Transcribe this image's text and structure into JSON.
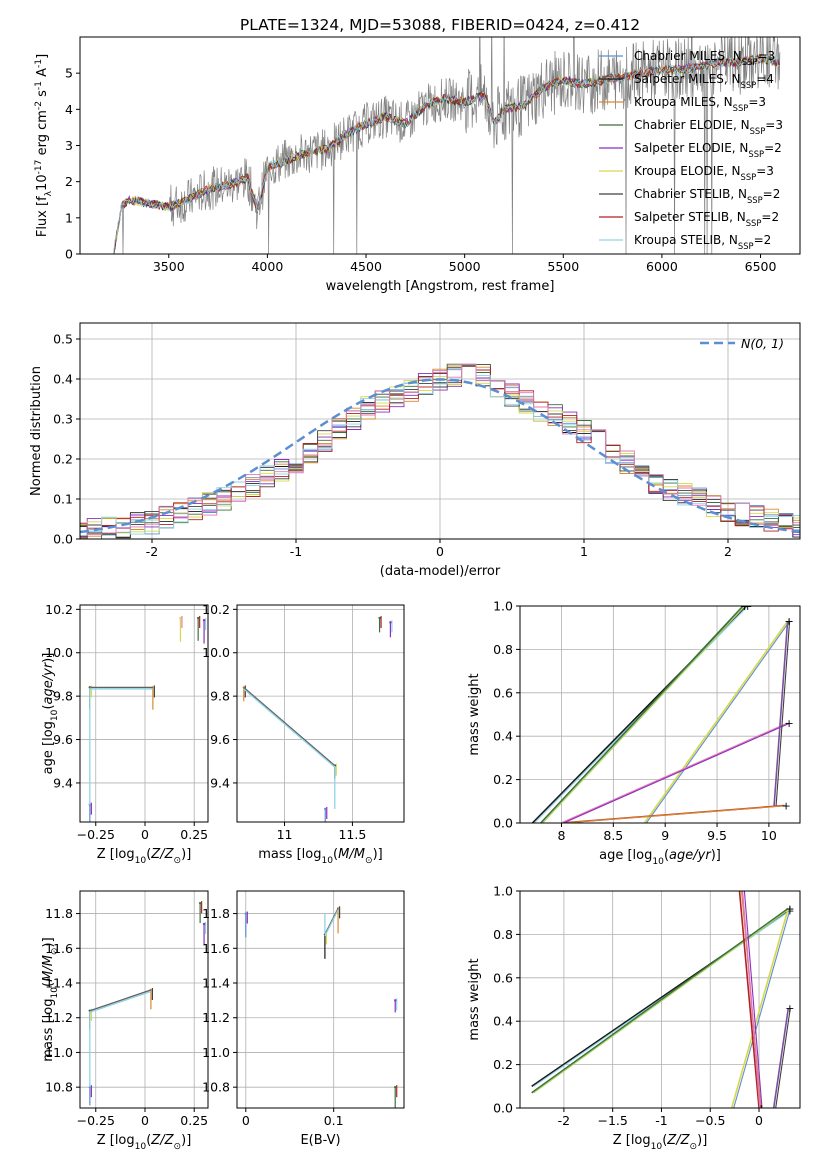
{
  "title": "PLATE=1324, MJD=53088, FIBERID=0424, z=0.412",
  "colors": [
    "#5b8fd1",
    "#1a1a1a",
    "#d98a2b",
    "#3f6f3f",
    "#8a2fbf",
    "#d8d84a",
    "#404040",
    "#b22222",
    "#8fd3e6",
    "#e07ab0",
    "#a8d65a",
    "#7a4fa0"
  ],
  "chart_data": [
    {
      "type": "line",
      "title": "PLATE=1324, MJD=53088, FIBERID=0424, z=0.412",
      "xlabel": "wavelength [Angstrom, rest frame]",
      "ylabel": "Flux [f$_\\lambda$10$^{-17}$ erg cm$^{-2}$ s$^{-1}$ A$^{-1}$]",
      "xlim": [
        3050,
        6700
      ],
      "ylim": [
        0,
        6
      ],
      "xticks": [
        3500,
        4000,
        4500,
        5000,
        5500,
        6000,
        6500
      ],
      "yticks": [
        0,
        1,
        2,
        3,
        4,
        5
      ],
      "legend": "top-right",
      "grid": false,
      "data_trace": {
        "x": [
          3220,
          3260,
          3300,
          3400,
          3500,
          3600,
          3700,
          3800,
          3900,
          3950,
          4000,
          4100,
          4200,
          4300,
          4400,
          4500,
          4600,
          4700,
          4800,
          4900,
          5000,
          5100,
          5150,
          5200,
          5300,
          5400,
          5500,
          5600,
          5700,
          5800,
          5900,
          6000,
          6100,
          6200,
          6300,
          6400,
          6500,
          6600
        ],
        "y": [
          0.0,
          1.3,
          1.5,
          1.4,
          1.3,
          1.5,
          1.8,
          1.9,
          2.1,
          1.2,
          2.4,
          2.6,
          2.8,
          2.9,
          3.3,
          3.6,
          3.8,
          3.6,
          4.1,
          4.3,
          4.2,
          4.4,
          3.6,
          4.0,
          4.1,
          4.6,
          4.8,
          4.7,
          4.8,
          4.9,
          5.0,
          5.1,
          5.1,
          5.2,
          5.3,
          5.3,
          5.4,
          5.3
        ]
      },
      "series": [
        {
          "name": "Chabrier MILES, N$_{SSP}$=3"
        },
        {
          "name": "Salpeter MILES, N$_{SSP}$=4"
        },
        {
          "name": "Kroupa MILES, N$_{SSP}$=3"
        },
        {
          "name": "Chabrier ELODIE, N$_{SSP}$=3"
        },
        {
          "name": "Salpeter ELODIE, N$_{SSP}$=2"
        },
        {
          "name": "Kroupa ELODIE, N$_{SSP}$=3"
        },
        {
          "name": "Chabrier STELIB, N$_{SSP}$=2"
        },
        {
          "name": "Salpeter STELIB, N$_{SSP}$=2"
        },
        {
          "name": "Kroupa STELIB, N$_{SSP}$=2"
        }
      ]
    },
    {
      "type": "line",
      "xlabel": "(data-model)/error",
      "ylabel": "Normed distribution",
      "xlim": [
        -2.5,
        2.5
      ],
      "ylim": [
        0,
        0.54
      ],
      "xticks": [
        -2,
        -1,
        0,
        1,
        2
      ],
      "yticks": [
        0.0,
        0.1,
        0.2,
        0.3,
        0.4,
        0.5
      ],
      "grid": true,
      "legend": "top-right",
      "reference_curve": {
        "name": "$\\mathcal{N}(0, 1)$",
        "style": "dashed",
        "mean": 0,
        "sd": 1
      },
      "histogram_bin_width": 0.1,
      "histogram_envelope": {
        "x": [
          -2.5,
          -2.0,
          -1.5,
          -1.0,
          -0.5,
          0.0,
          0.25,
          0.5,
          1.0,
          1.5,
          2.0,
          2.5
        ],
        "y": [
          0.02,
          0.04,
          0.1,
          0.19,
          0.33,
          0.4,
          0.42,
          0.36,
          0.27,
          0.14,
          0.07,
          0.03
        ]
      }
    },
    {
      "type": "scatter",
      "xlabel": "Z [log$_{10}$($Z/Z_\\odot$)]",
      "ylabel": "age  [log$_{10}$($age/yr$)]",
      "xlim": [
        -0.33,
        0.32
      ],
      "ylim": [
        9.22,
        10.22
      ],
      "xticks": [
        -0.25,
        0.0,
        0.25
      ],
      "yticks": [
        9.4,
        9.6,
        9.8,
        10.0,
        10.2
      ],
      "grid": true,
      "points": [
        [
          -0.28,
          9.3
        ],
        [
          -0.28,
          9.84
        ],
        [
          0.04,
          9.84
        ],
        [
          0.27,
          10.16
        ],
        [
          0.3,
          10.15
        ],
        [
          0.18,
          10.16
        ]
      ]
    },
    {
      "type": "scatter",
      "xlabel": "mass [log$_{10}$($M/M_\\odot$)]",
      "ylabel": "",
      "xlim": [
        10.65,
        11.88
      ],
      "ylim": [
        9.22,
        10.22
      ],
      "xticks": [
        11.0,
        11.5
      ],
      "yticks": [
        9.4,
        9.6,
        9.8,
        10.0,
        10.2
      ],
      "grid": true,
      "points": [
        [
          11.3,
          9.28
        ],
        [
          11.37,
          9.48
        ],
        [
          10.7,
          9.84
        ],
        [
          11.7,
          10.16
        ],
        [
          11.78,
          10.14
        ]
      ]
    },
    {
      "type": "line",
      "xlabel": "age  [log$_{10}$($age/yr$)]",
      "ylabel": "mass weight",
      "xlim": [
        7.6,
        10.3
      ],
      "ylim": [
        0,
        1
      ],
      "xticks": [
        8.0,
        8.5,
        9.0,
        9.5,
        10.0
      ],
      "yticks": [
        0.0,
        0.2,
        0.4,
        0.6,
        0.8,
        1.0
      ],
      "grid": true,
      "series": [
        {
          "x": [
            7.72,
            9.78
          ],
          "y": [
            0.0,
            1.0
          ]
        },
        {
          "x": [
            7.8,
            9.75
          ],
          "y": [
            0.0,
            1.0
          ]
        },
        {
          "x": [
            8.8,
            10.18
          ],
          "y": [
            0.0,
            0.93
          ]
        },
        {
          "x": [
            8.0,
            10.15
          ],
          "y": [
            0.0,
            0.08
          ]
        },
        {
          "x": [
            8.0,
            10.18
          ],
          "y": [
            0.0,
            0.46
          ]
        },
        {
          "x": [
            10.05,
            10.18
          ],
          "y": [
            0.08,
            0.93
          ]
        }
      ]
    },
    {
      "type": "scatter",
      "xlabel": "Z [log$_{10}$($Z/Z_\\odot$)]",
      "ylabel": "mass [log$_{10}$($M/M_\\odot$)]",
      "xlim": [
        -0.33,
        0.32
      ],
      "ylim": [
        10.68,
        11.93
      ],
      "xticks": [
        -0.25,
        0.0,
        0.25
      ],
      "yticks": [
        10.8,
        11.0,
        11.2,
        11.4,
        11.6,
        11.8
      ],
      "grid": true,
      "points": [
        [
          -0.28,
          10.8
        ],
        [
          -0.28,
          11.24
        ],
        [
          0.03,
          11.36
        ],
        [
          0.28,
          11.86
        ],
        [
          0.3,
          11.74
        ]
      ]
    },
    {
      "type": "scatter",
      "xlabel": "E(B-V)",
      "ylabel": "",
      "xlim": [
        -0.01,
        0.18
      ],
      "ylim": [
        10.68,
        11.93
      ],
      "xticks": [
        0.0,
        0.1
      ],
      "yticks": [
        10.8,
        11.0,
        11.2,
        11.4,
        11.6,
        11.8
      ],
      "grid": true,
      "points": [
        [
          0.0,
          11.8
        ],
        [
          0.09,
          11.68
        ],
        [
          0.105,
          11.83
        ],
        [
          0.17,
          10.8
        ],
        [
          0.17,
          11.3
        ]
      ]
    },
    {
      "type": "line",
      "xlabel": "Z [log$_{10}$($Z/Z_\\odot$)]",
      "ylabel": "mass weight",
      "xlim": [
        -2.45,
        0.42
      ],
      "ylim": [
        0,
        1
      ],
      "xticks": [
        -2.0,
        -1.5,
        -1.0,
        -0.5,
        0.0
      ],
      "yticks": [
        0.0,
        0.2,
        0.4,
        0.6,
        0.8,
        1.0
      ],
      "grid": true,
      "series": [
        {
          "x": [
            -2.33,
            0.3
          ],
          "y": [
            0.1,
            0.91
          ]
        },
        {
          "x": [
            -2.33,
            0.3
          ],
          "y": [
            0.07,
            0.92
          ]
        },
        {
          "x": [
            -0.28,
            0.3
          ],
          "y": [
            0.0,
            0.92
          ]
        },
        {
          "x": [
            -0.2,
            0.0
          ],
          "y": [
            1.0,
            0.0
          ]
        },
        {
          "x": [
            -0.17,
            0.01
          ],
          "y": [
            1.0,
            0.0
          ]
        },
        {
          "x": [
            0.15,
            0.3
          ],
          "y": [
            0.0,
            0.46
          ]
        }
      ]
    }
  ]
}
